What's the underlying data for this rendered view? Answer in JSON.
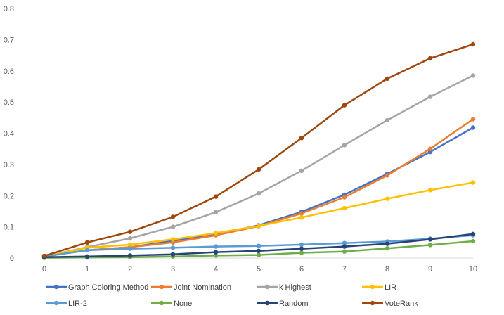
{
  "chart_data": {
    "type": "line",
    "title": "",
    "xlabel": "",
    "ylabel": "",
    "x": [
      0,
      1,
      2,
      3,
      4,
      5,
      6,
      7,
      8,
      9,
      10
    ],
    "x_tick_labels": [
      "0",
      "1",
      "2",
      "3",
      "4",
      "5",
      "6",
      "7",
      "8",
      "9",
      "10"
    ],
    "ylim": [
      0,
      0.8
    ],
    "y_ticks": [
      0,
      0.1,
      0.2,
      0.3,
      0.4,
      0.5,
      0.6,
      0.7,
      0.8
    ],
    "y_tick_labels": [
      "0",
      "0.1",
      "0.2",
      "0.3",
      "0.4",
      "0.5",
      "0.6",
      "0.7",
      "0.8"
    ],
    "grid": false,
    "legend_position": "bottom",
    "series": [
      {
        "name": "Graph Coloring Method",
        "color": "#4472C4",
        "values": [
          0.005,
          0.025,
          0.035,
          0.055,
          0.075,
          0.105,
          0.148,
          0.203,
          0.27,
          0.34,
          0.418
        ]
      },
      {
        "name": "Joint Nomination",
        "color": "#ED7D31",
        "values": [
          0.005,
          0.025,
          0.035,
          0.05,
          0.073,
          0.102,
          0.143,
          0.195,
          0.265,
          0.35,
          0.445
        ]
      },
      {
        "name": "k Highest",
        "color": "#A5A5A5",
        "values": [
          0.005,
          0.035,
          0.063,
          0.1,
          0.147,
          0.207,
          0.28,
          0.362,
          0.442,
          0.517,
          0.585
        ]
      },
      {
        "name": "LIR",
        "color": "#FFC000",
        "values": [
          0.005,
          0.033,
          0.043,
          0.06,
          0.08,
          0.103,
          0.13,
          0.16,
          0.19,
          0.218,
          0.242
        ]
      },
      {
        "name": "LIR-2",
        "color": "#5B9BD5",
        "values": [
          0.005,
          0.025,
          0.03,
          0.033,
          0.037,
          0.039,
          0.043,
          0.048,
          0.053,
          0.062,
          0.073
        ]
      },
      {
        "name": "None",
        "color": "#70AD47",
        "values": [
          0.001,
          0.002,
          0.003,
          0.005,
          0.008,
          0.01,
          0.017,
          0.021,
          0.031,
          0.042,
          0.054
        ]
      },
      {
        "name": "Random",
        "color": "#264478",
        "values": [
          0.003,
          0.005,
          0.008,
          0.012,
          0.019,
          0.023,
          0.03,
          0.037,
          0.046,
          0.06,
          0.077
        ]
      },
      {
        "name": "VoteRank",
        "color": "#9E480E",
        "values": [
          0.007,
          0.05,
          0.084,
          0.132,
          0.197,
          0.284,
          0.385,
          0.49,
          0.575,
          0.64,
          0.685
        ]
      }
    ]
  }
}
